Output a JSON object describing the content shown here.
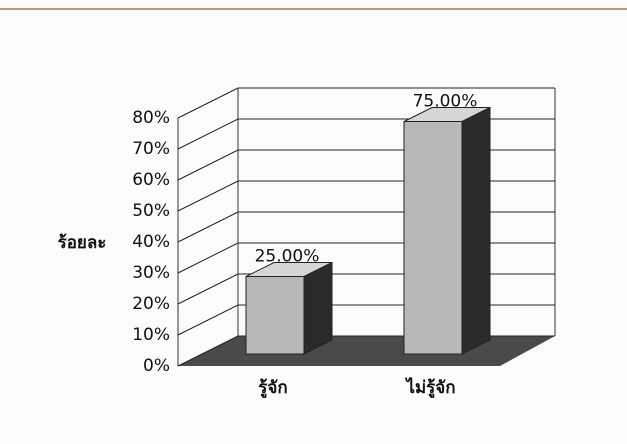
{
  "chart_data": {
    "type": "bar",
    "y_label": "ร้อยละ",
    "categories": [
      "รู้จัก",
      "ไม่รู้จัก"
    ],
    "values": [
      25,
      75
    ],
    "value_labels": [
      "25.00%",
      "75.00%"
    ],
    "color": "#b8b8b8",
    "ylim": [
      0,
      80
    ],
    "yticks": [
      {
        "value": 0,
        "label": "0%"
      },
      {
        "value": 10,
        "label": "10%"
      },
      {
        "value": 20,
        "label": "20%"
      },
      {
        "value": 30,
        "label": "30%"
      },
      {
        "value": 40,
        "label": "40%"
      },
      {
        "value": 50,
        "label": "50%"
      },
      {
        "value": 60,
        "label": "60%"
      },
      {
        "value": 70,
        "label": "70%"
      },
      {
        "value": 80,
        "label": "80%"
      }
    ],
    "grid": true
  }
}
